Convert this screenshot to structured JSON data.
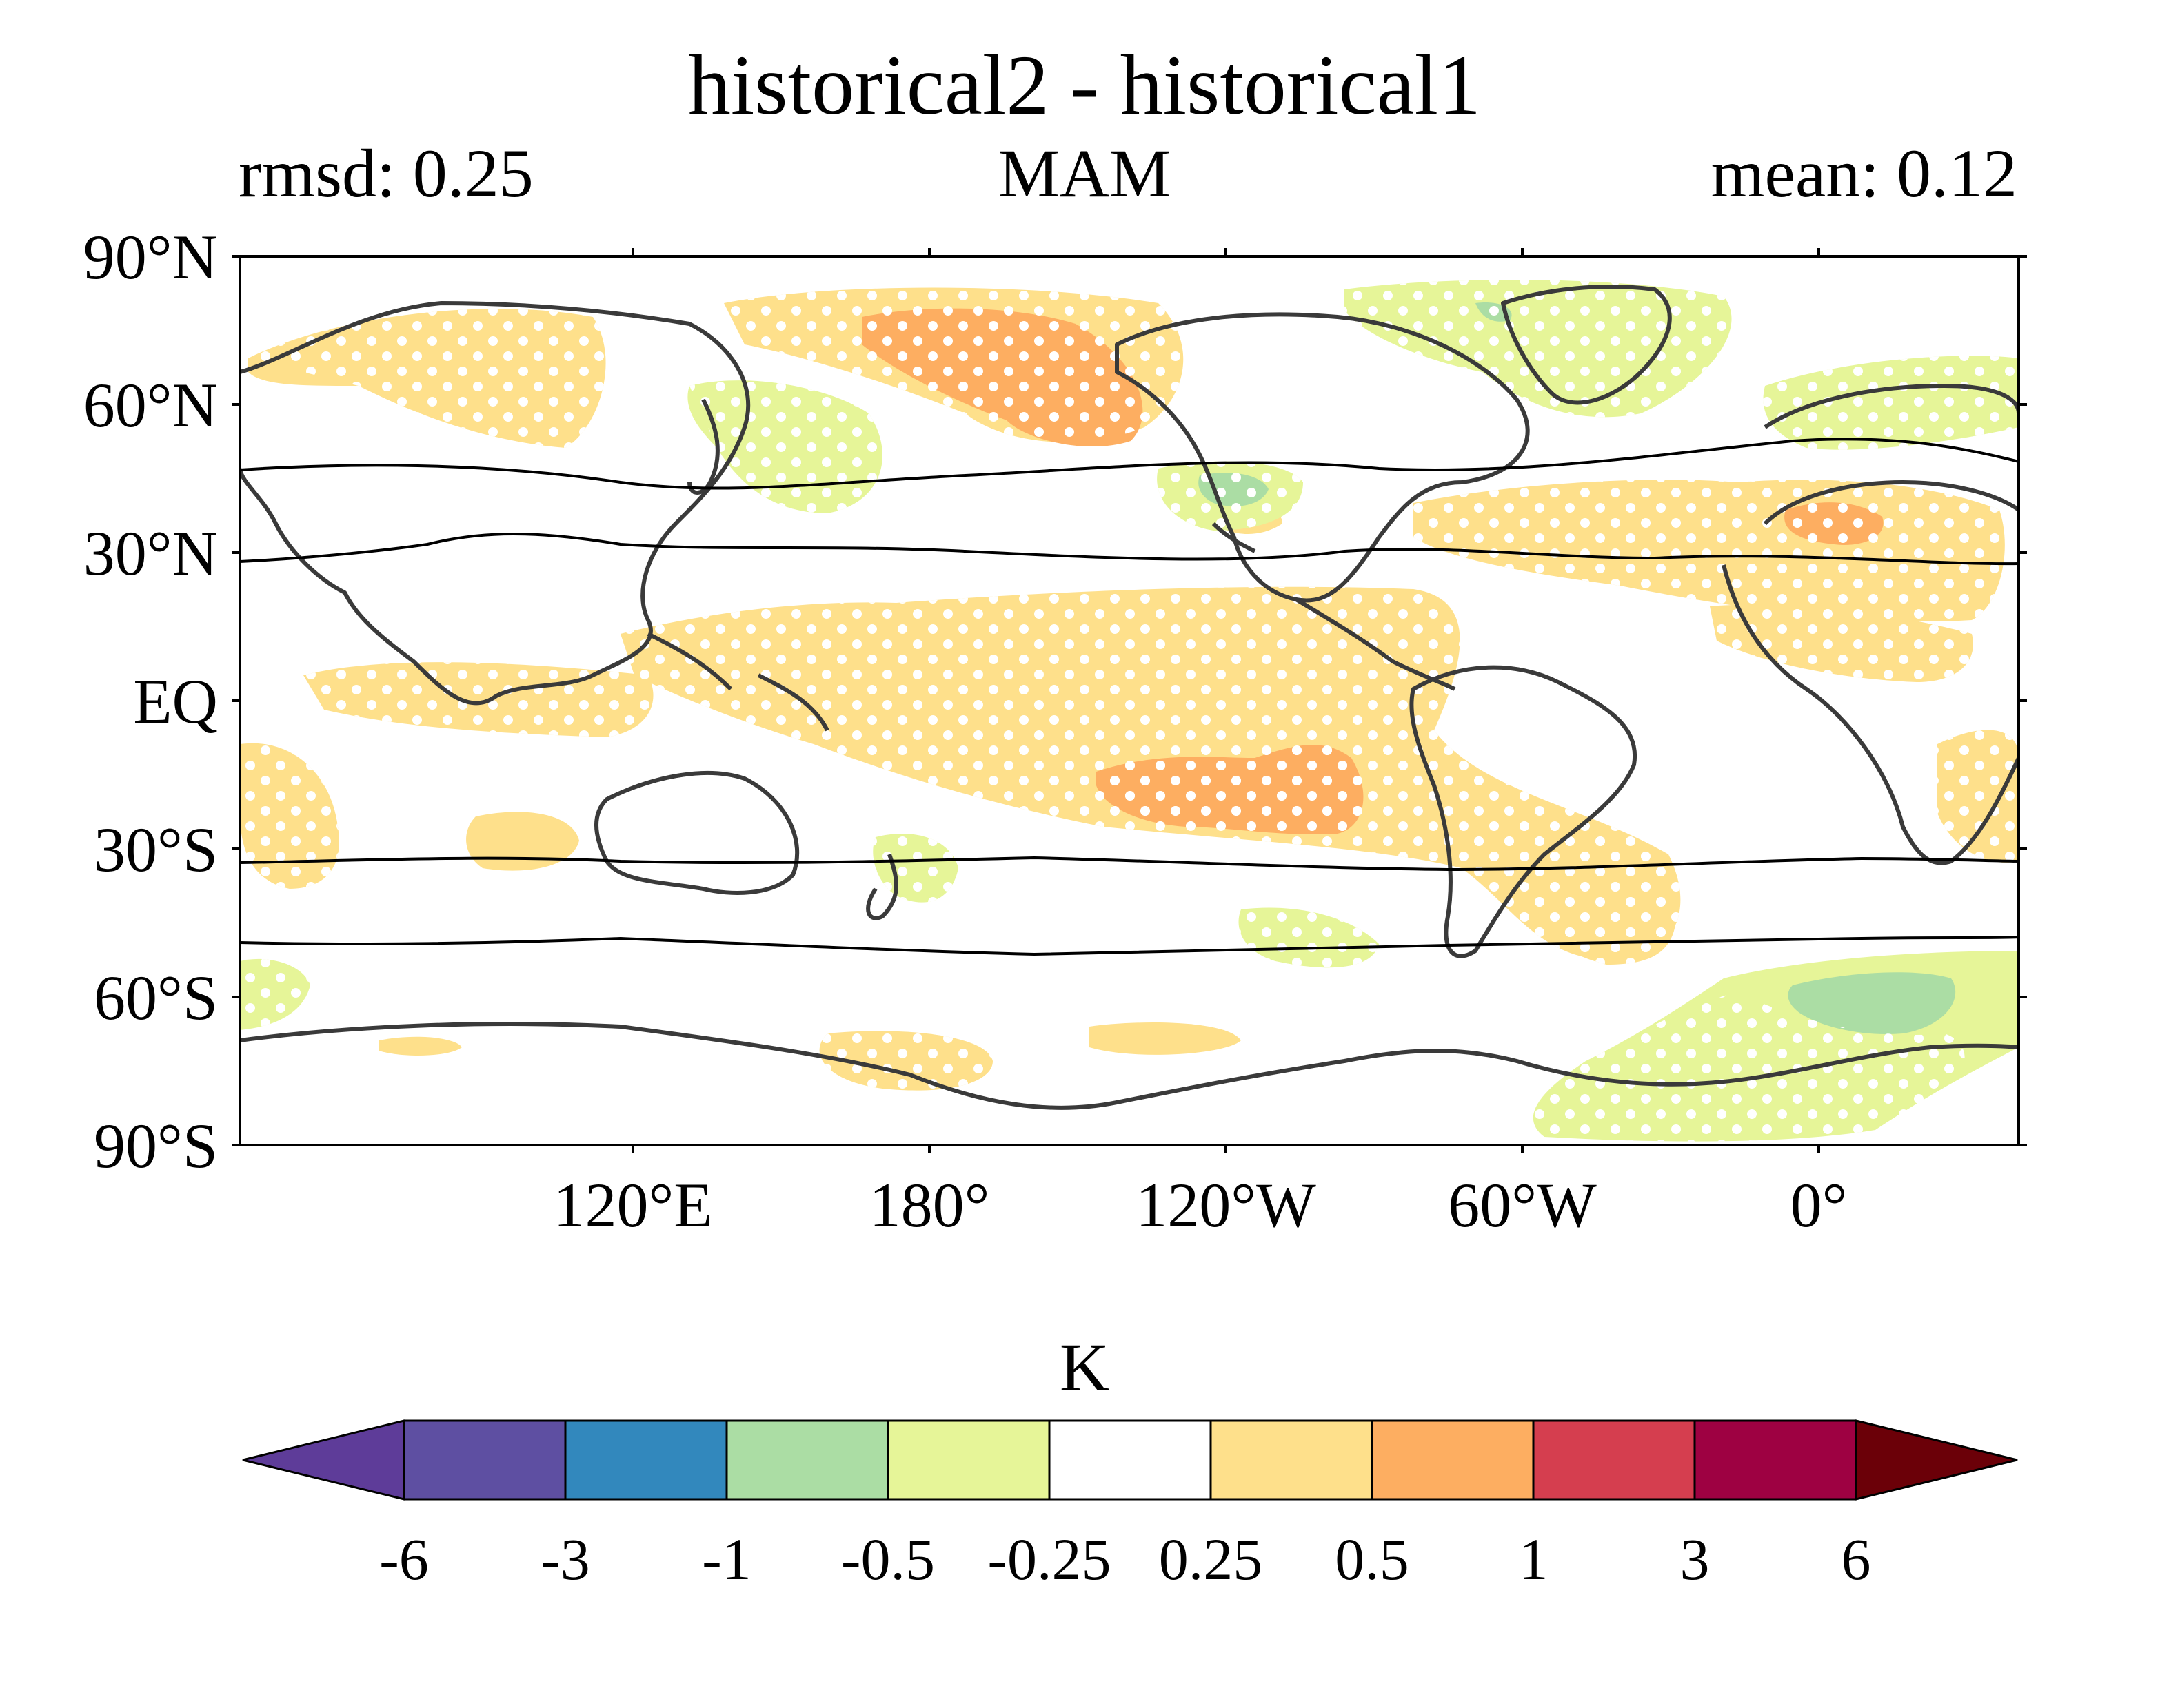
{
  "figure": {
    "title": "historical2 - historical1",
    "left_annotation": "rmsd: 0.25",
    "center_annotation": "MAM",
    "right_annotation": "mean: 0.12"
  },
  "map": {
    "projection": "PlateCarree",
    "central_longitude": "-132",
    "lat_ticks": [
      "90°N",
      "60°N",
      "30°N",
      "EQ",
      "30°S",
      "60°S",
      "90°S"
    ],
    "lon_ticks": [
      "120°E",
      "180°",
      "120°W",
      "60°W",
      "0°"
    ],
    "stippling": "white dots",
    "contour_lines": "black lines near 45°N, 28°N, 33°S, 50°S"
  },
  "colorbar": {
    "label": "K",
    "tick_labels": [
      "-6",
      "-3",
      "-1",
      "-0.5",
      "-0.25",
      "0.25",
      "0.5",
      "1",
      "3",
      "6"
    ],
    "colors": [
      "#5e3c99",
      "#5e4fa2",
      "#3288bd",
      "#abdda4",
      "#e6f598",
      "#ffffff",
      "#fee08b",
      "#fdae61",
      "#d53e4f",
      "#9e0142",
      "#6b0008"
    ]
  },
  "chart_data": {
    "type": "map",
    "title": "historical2 - historical1",
    "subtitle_left": "rmsd: 0.25",
    "subtitle_center": "MAM",
    "subtitle_right": "mean: 0.12",
    "units": "K",
    "levels": [
      -6,
      -3,
      -1,
      -0.5,
      -0.25,
      0.25,
      0.5,
      1,
      3,
      6
    ]
  }
}
